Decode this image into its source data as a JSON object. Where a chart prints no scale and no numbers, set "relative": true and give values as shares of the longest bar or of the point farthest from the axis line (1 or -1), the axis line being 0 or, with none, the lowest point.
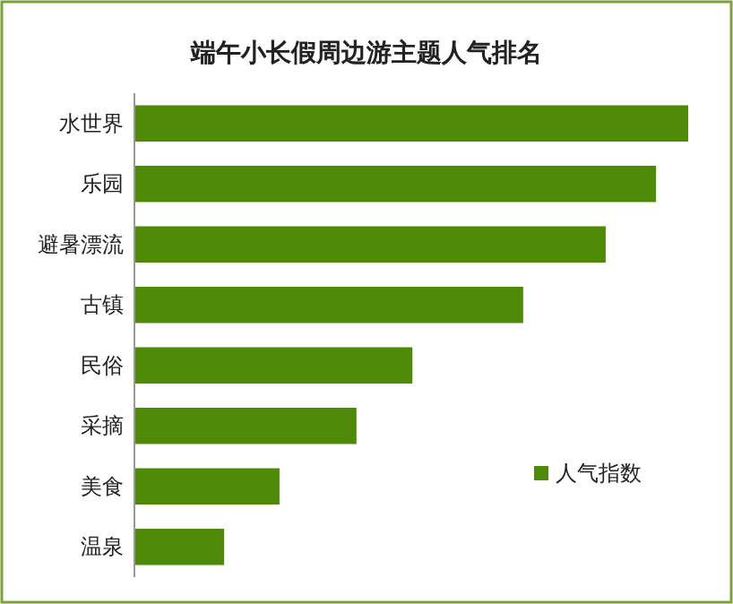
{
  "chart_data": {
    "type": "bar",
    "orientation": "horizontal",
    "relative": true,
    "title": "端午小长假周边游主题人气排名",
    "categories": [
      "水世界",
      "乐园",
      "避暑漂流",
      "古镇",
      "民俗",
      "采摘",
      "美食",
      "温泉"
    ],
    "series": [
      {
        "name": "人气指数",
        "color": "#4e8a08",
        "values": [
          1,
          0.942,
          0.851,
          0.702,
          0.502,
          0.401,
          0.262,
          0.162
        ]
      }
    ],
    "legend": "bottom right"
  }
}
